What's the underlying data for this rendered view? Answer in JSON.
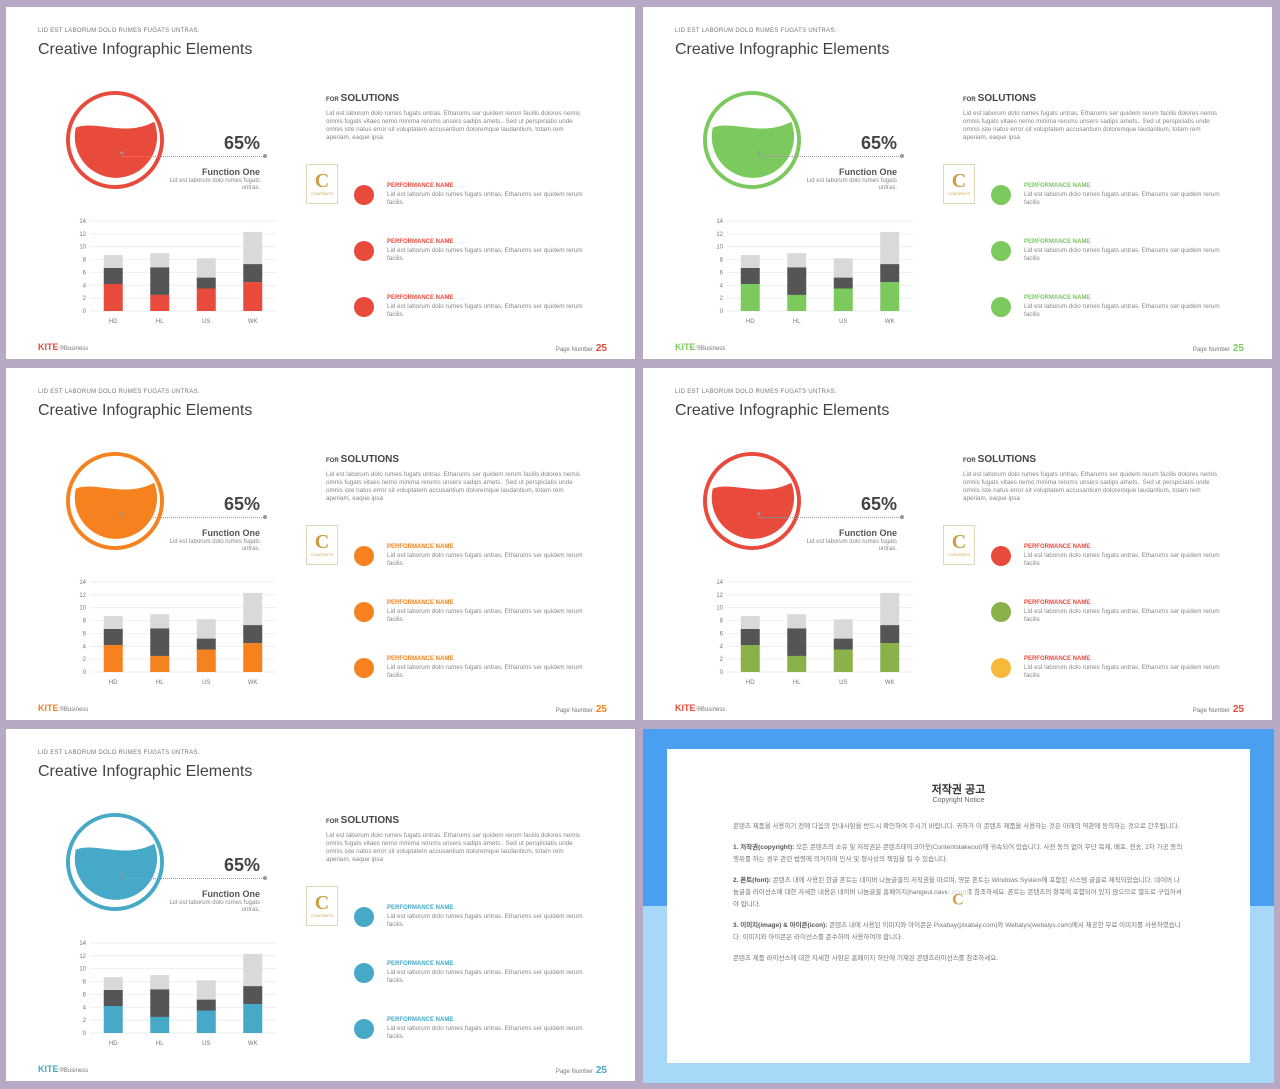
{
  "common": {
    "kicker": "LID EST LABORUM DOLO RUMES FUGATS UNTRAS.",
    "title": "Creative Infographic Elements",
    "percent": "65%",
    "fill_fraction": 0.65,
    "function_title": "Function One",
    "function_desc": "Lid est laborum dolo rumes fugats untras.",
    "sol_for": "FOR",
    "sol_title": "SOLUTIONS",
    "sol_text": "Lid est laborum dolo rumes fugats untras. Etharums ser quidem rerum facilis dolores nemis omnis fugats vitaes nemo minima rerums unsers sadips amets.. Sed ut perspiciatis unde omnis iste natus error sit voluptatem accusantium doloremque laudantium, totam rem aperiam, eaque ipsa",
    "perf_name": "PERFORMANCE NAME",
    "perf_desc": "Lid est laborum dolo rumes fugats untras. Etharums ser quidem rerum facilis",
    "brand": "KITE",
    "brand_sub": "®Business",
    "page_label": "Page Number",
    "page_number": "25",
    "logo_letter": "C",
    "logo_text": "CONTENTS"
  },
  "chart_data": {
    "type": "bar",
    "stacked": true,
    "categories": [
      "HD",
      "HL",
      "US",
      "WK"
    ],
    "yticks": [
      "0",
      "2",
      "4",
      "6",
      "8",
      "10",
      "12",
      "14"
    ],
    "ylim": [
      0,
      14
    ],
    "series": [
      {
        "values": [
          4.2,
          2.5,
          3.5,
          4.5
        ]
      },
      {
        "values": [
          2.5,
          4.3,
          1.7,
          2.8
        ]
      },
      {
        "values": [
          2.0,
          2.2,
          3.0,
          5.0
        ]
      }
    ],
    "series_colors": [
      "accent",
      "#555555",
      "#d9d9d9"
    ]
  },
  "slides": [
    {
      "accent": "#e84a3c",
      "dots": [
        "#e84a3c",
        "#e84a3c",
        "#e84a3c"
      ]
    },
    {
      "accent": "#7cc95e",
      "dots": [
        "#7cc95e",
        "#7cc95e",
        "#7cc95e"
      ]
    },
    {
      "accent": "#f5821f",
      "dots": [
        "#f5821f",
        "#f5821f",
        "#f5821f"
      ]
    },
    {
      "accent": "#e84a3c",
      "bar_accent": "#8ab14a",
      "dots": [
        "#e84a3c",
        "#8ab14a",
        "#f6b93b"
      ]
    },
    {
      "accent": "#46a9c7",
      "dots": [
        "#46a9c7",
        "#46a9c7",
        "#46a9c7"
      ]
    }
  ],
  "copyright": {
    "title": "저작권 공고",
    "subtitle": "Copyright Notice",
    "intro": "콘텐츠 제품을 사용하기 전에 다음의 안내사항을 반드시 확인하여 주시기 바랍니다. 귀하가 이 콘텐츠 제품을 사용하는 것은 아래의 약관에 동의하는 것으로 간주됩니다.",
    "p1_head": "1. 저작권(copyright):",
    "p1": "모든 콘텐츠의 소유 및 저작권은 콘텐츠테이크아웃(Contentstakeout)에 귀속되어 있습니다. 사전 동의 없이 무단 복제, 배포, 전송, 2차 가공 등의 행위를 하는 경우 관련 법령에 의거하여 민사 및 형사상의 책임을 질 수 있습니다.",
    "p2_head": "2. 폰트(font):",
    "p2": "콘텐츠 내에 사용된 한글 폰트는 네이버 나눔글꼴의 저작권을 따르며, 영문 폰트는 Windows System에 포함된 시스템 글꼴로 제작되었습니다. 네이버 나눔글꼴 라이선스에 대한 자세한 내용은 네이버 나눔글꼴 홈페이지(hangeul.naver.com)를 참조하세요. 폰트는 콘텐츠의 항목에 포함되어 있지 않으므로 별도로 구입하셔야 합니다.",
    "p3_head": "3. 이미지(image) & 아이콘(icon):",
    "p3": "콘텐츠 내에 사용된 이미지와 아이콘은 Pixabay(pixabay.com)와 Webalys(webalys.com)에서 제공한 무료 이미지를 사용하였습니다. 이미지와 아이콘은 라이선스를 준수하여 사용하여야 합니다.",
    "outro": "콘텐츠 제품 라이선스에 대한 자세한 사항은 홈페이지 하단에 기재된 콘텐츠라이선스를 참조하세요."
  }
}
